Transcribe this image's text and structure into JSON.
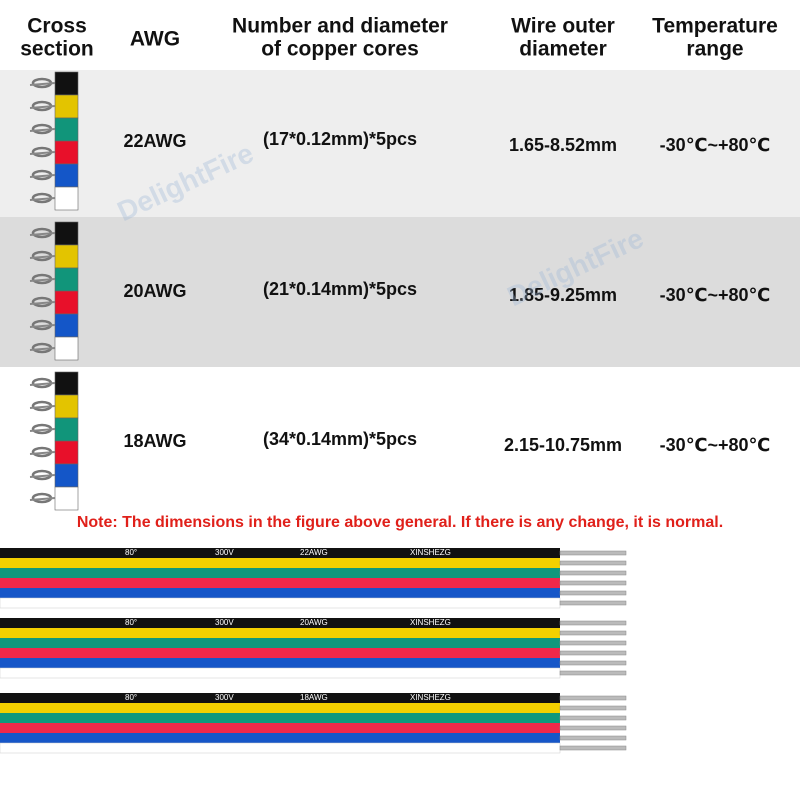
{
  "header": {
    "columns": [
      {
        "lines": [
          "Cross",
          "section"
        ]
      },
      {
        "lines": [
          "AWG"
        ]
      },
      {
        "lines": [
          "Number and diameter",
          "of copper cores"
        ]
      },
      {
        "lines": [
          "Wire outer",
          "diameter"
        ]
      },
      {
        "lines": [
          "Temperature",
          "range"
        ]
      }
    ]
  },
  "rows": [
    {
      "awg": "22AWG",
      "cores": "(17*0.12mm)*5pcs",
      "diameter": "1.65-8.52mm",
      "temperature": "-30℃~+80℃"
    },
    {
      "awg": "20AWG",
      "cores": "(21*0.14mm)*5pcs",
      "diameter": "1.85-9.25mm",
      "temperature": "-30℃~+80℃"
    },
    {
      "awg": "18AWG",
      "cores": "(34*0.14mm)*5pcs",
      "diameter": "2.15-10.75mm",
      "temperature": "-30℃~+80℃"
    }
  ],
  "note": "Note: The dimensions in the figure above general. If there is any change, it is normal.",
  "cables": [
    {
      "labels": [
        "80°",
        "300V",
        "22AWG",
        "XINSHEZG"
      ]
    },
    {
      "labels": [
        "80°",
        "300V",
        "20AWG",
        "XINSHEZG"
      ]
    },
    {
      "labels": [
        "80°",
        "300V",
        "18AWG",
        "XINSHEZG"
      ]
    }
  ],
  "watermark": "DelightFire"
}
